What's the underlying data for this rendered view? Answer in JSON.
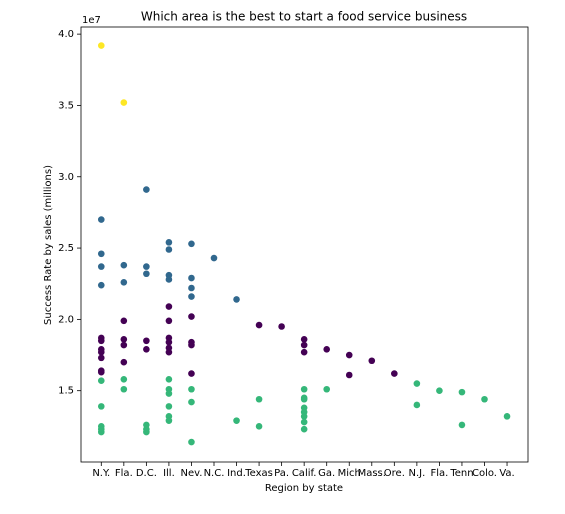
{
  "chart_data": {
    "type": "scatter",
    "title": "Which area is the best to start a food service business",
    "x_label": "Region by state",
    "y_label": "Success Rate by sales (millions)",
    "y_offset_label": "1e7",
    "xlim": [
      -0.9,
      18.93
    ],
    "xticks": [
      {
        "value": 0,
        "label": "N.Y."
      },
      {
        "value": 1,
        "label": "Fla."
      },
      {
        "value": 2,
        "label": "D.C."
      },
      {
        "value": 3,
        "label": "Ill."
      },
      {
        "value": 4,
        "label": "Nev."
      },
      {
        "value": 5,
        "label": "N.C."
      },
      {
        "value": 6,
        "label": "Ind."
      },
      {
        "value": 7,
        "label": "Texas"
      },
      {
        "value": 8,
        "label": "Pa."
      },
      {
        "value": 9,
        "label": "Calif."
      },
      {
        "value": 10,
        "label": "Ga."
      },
      {
        "value": 11,
        "label": "Mich"
      },
      {
        "value": 12,
        "label": "Mass."
      },
      {
        "value": 13,
        "label": "Ore."
      },
      {
        "value": 14,
        "label": "N.J."
      },
      {
        "value": 15,
        "label": "Fla."
      },
      {
        "value": 16,
        "label": "Tenn"
      },
      {
        "value": 17,
        "label": "Colo."
      },
      {
        "value": 18,
        "label": "Va."
      }
    ],
    "ylim": [
      1.0,
      4.05
    ],
    "yticks": [
      1.5,
      {
        "value": 2,
        "label": "2.0"
      },
      2.5,
      {
        "value": 3,
        "label": "3.0"
      },
      3.5,
      {
        "value": 4,
        "label": "4.0"
      }
    ],
    "series": [
      {
        "color": "#fde725",
        "x": [
          0,
          1
        ],
        "values": [
          3.92,
          3.52
        ]
      },
      {
        "color": "#31688e",
        "x": [
          0,
          0,
          0,
          0,
          1,
          1,
          2,
          2,
          2,
          3,
          3,
          3,
          3,
          4,
          4,
          4,
          4,
          5,
          6
        ],
        "values": [
          2.7,
          2.46,
          2.37,
          2.24,
          2.38,
          2.26,
          2.91,
          2.37,
          2.32,
          2.54,
          2.49,
          2.31,
          2.28,
          2.53,
          2.29,
          2.22,
          2.16,
          2.43,
          2.14
        ]
      },
      {
        "color": "#440154",
        "x": [
          0,
          0,
          0,
          0,
          0,
          0,
          0,
          1,
          1,
          1,
          1,
          2,
          2,
          3,
          3,
          3,
          3,
          3,
          3,
          4,
          4,
          4,
          4,
          7,
          8,
          9,
          9,
          9,
          10,
          11,
          11,
          12,
          13
        ],
        "values": [
          1.87,
          1.85,
          1.79,
          1.77,
          1.73,
          1.64,
          1.63,
          1.99,
          1.86,
          1.82,
          1.7,
          1.85,
          1.79,
          2.09,
          1.99,
          1.87,
          1.84,
          1.8,
          1.77,
          2.02,
          1.84,
          1.82,
          1.62,
          1.96,
          1.95,
          1.86,
          1.82,
          1.77,
          1.79,
          1.75,
          1.61,
          1.71,
          1.62
        ]
      },
      {
        "color": "#35b779",
        "x": [
          0,
          0,
          0,
          0,
          0,
          1,
          1,
          2,
          2,
          2,
          3,
          3,
          3,
          3,
          3,
          3,
          4,
          4,
          4,
          6,
          7,
          7,
          9,
          9,
          9,
          9,
          9,
          9,
          9,
          9,
          10,
          14,
          14,
          15,
          16,
          16,
          17,
          18
        ],
        "values": [
          1.57,
          1.39,
          1.25,
          1.23,
          1.21,
          1.58,
          1.51,
          1.26,
          1.23,
          1.21,
          1.58,
          1.51,
          1.48,
          1.39,
          1.32,
          1.29,
          1.51,
          1.42,
          1.14,
          1.29,
          1.44,
          1.25,
          1.51,
          1.45,
          1.44,
          1.38,
          1.35,
          1.32,
          1.28,
          1.23,
          1.51,
          1.55,
          1.4,
          1.5,
          1.49,
          1.26,
          1.44,
          1.32
        ]
      }
    ]
  }
}
